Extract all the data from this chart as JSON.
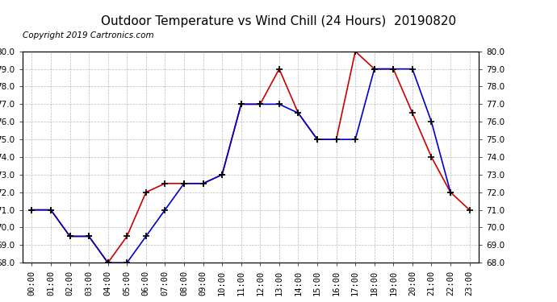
{
  "title": "Outdoor Temperature vs Wind Chill (24 Hours)  20190820",
  "copyright": "Copyright 2019 Cartronics.com",
  "hours": [
    "00:00",
    "01:00",
    "02:00",
    "03:00",
    "04:00",
    "05:00",
    "06:00",
    "07:00",
    "08:00",
    "09:00",
    "10:00",
    "11:00",
    "12:00",
    "13:00",
    "14:00",
    "15:00",
    "16:00",
    "17:00",
    "18:00",
    "19:00",
    "20:00",
    "21:00",
    "22:00",
    "23:00"
  ],
  "temperature": [
    71.0,
    71.0,
    69.5,
    69.5,
    68.0,
    69.5,
    72.0,
    72.5,
    72.5,
    72.5,
    73.0,
    77.0,
    77.0,
    79.0,
    76.5,
    75.0,
    75.0,
    80.0,
    79.0,
    79.0,
    76.5,
    74.0,
    72.0,
    71.0
  ],
  "wind_chill": [
    71.0,
    71.0,
    69.5,
    69.5,
    68.0,
    68.0,
    69.5,
    71.0,
    72.5,
    72.5,
    73.0,
    77.0,
    77.0,
    77.0,
    76.5,
    75.0,
    75.0,
    75.0,
    79.0,
    79.0,
    79.0,
    76.0,
    72.0,
    null
  ],
  "ylim_min": 68.0,
  "ylim_max": 80.0,
  "yticks": [
    68.0,
    69.0,
    70.0,
    71.0,
    72.0,
    73.0,
    74.0,
    75.0,
    76.0,
    77.0,
    78.0,
    79.0,
    80.0
  ],
  "temp_color": "#cc0000",
  "wind_chill_color": "#0000cc",
  "background_color": "#ffffff",
  "plot_bg_color": "#ffffff",
  "grid_color": "#aaaaaa",
  "legend_wind_bg": "#0000cc",
  "legend_temp_bg": "#cc0000",
  "legend_text_color": "#ffffff",
  "marker_color": "#000000",
  "title_fontsize": 11,
  "tick_fontsize": 7.5,
  "copyright_fontsize": 7.5
}
